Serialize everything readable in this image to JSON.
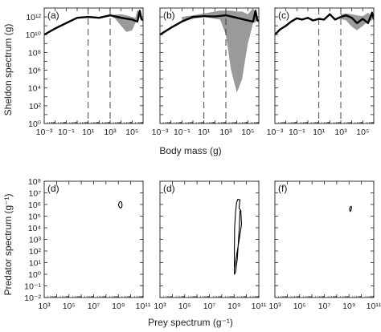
{
  "chart_data": [
    {
      "type": "area",
      "panel_label": "(a)",
      "xscale": "log",
      "yscale": "log",
      "xlim": [
        0.001,
        1000000
      ],
      "ylim": [
        1,
        10000000000000.0
      ],
      "ylabel": "Sheldon spectrum (g)",
      "xlabel": "",
      "vlines": [
        10,
        1000
      ],
      "series": [
        {
          "role": "line",
          "x": [
            0.001,
            0.01,
            0.1,
            1,
            10,
            100,
            1000,
            10000,
            100000,
            300000,
            500000,
            700000,
            1000000
          ],
          "y": [
            10000000000.0,
            50000000000.0,
            200000000000.0,
            800000000000.0,
            1000000000000.0,
            800000000000.0,
            1500000000000.0,
            800000000000.0,
            500000000000.0,
            300000000000.0,
            5000000000000.0,
            600000000000.0,
            400000000000.0
          ]
        },
        {
          "role": "band",
          "x": [
            1000,
            3000,
            10000,
            30000,
            100000,
            200000,
            300000,
            500000,
            700000
          ],
          "upper": [
            1500000000000.0,
            1800000000000.0,
            2000000000000.0,
            1500000000000.0,
            1000000000000.0,
            800000000000.0,
            6000000000000.0,
            3000000000000.0,
            1000000000000.0
          ],
          "lower": [
            1500000000000.0,
            600000000000.0,
            100000000000.0,
            20000000000.0,
            30000000000.0,
            200000000000.0,
            1000000000000.0,
            800000000000.0,
            400000000000.0
          ]
        }
      ]
    },
    {
      "type": "area",
      "panel_label": "(b)",
      "xscale": "log",
      "yscale": "log",
      "xlim": [
        0.001,
        1000000
      ],
      "ylim": [
        1,
        10000000000000.0
      ],
      "xlabel": "",
      "ylabel": "",
      "vlines": [
        10,
        1000
      ],
      "series": [
        {
          "role": "line",
          "x": [
            0.001,
            0.01,
            0.1,
            1,
            10,
            100,
            1000,
            10000,
            100000,
            300000,
            500000,
            700000,
            1000000
          ],
          "y": [
            10000000000.0,
            60000000000.0,
            300000000000.0,
            1000000000000.0,
            1200000000000.0,
            1100000000000.0,
            1500000000000.0,
            800000000000.0,
            400000000000.0,
            300000000000.0,
            5000000000000.0,
            500000000000.0,
            300000000000.0
          ]
        },
        {
          "role": "band",
          "x": [
            0.1,
            1,
            10,
            30,
            100,
            300,
            1000,
            3000,
            10000,
            30000,
            100000,
            300000,
            700000
          ],
          "upper": [
            1000000000000.0,
            1500000000000.0,
            2500000000000.0,
            3000000000000.0,
            4000000000000.0,
            5000000000000.0,
            5000000000000.0,
            5000000000000.0,
            4000000000000.0,
            4000000000000.0,
            2000000000000.0,
            10000000000000.0,
            1000000000000.0
          ],
          "lower": [
            300000000000.0,
            600000000000.0,
            1000000000000.0,
            800000000000.0,
            600000000000.0,
            500000000000.0,
            10000000000.0,
            1000000.0,
            3000.0,
            100000.0,
            1000000000.0,
            200000000000.0,
            300000000000.0
          ]
        }
      ]
    },
    {
      "type": "area",
      "panel_label": "(c)",
      "xscale": "log",
      "yscale": "log",
      "xlim": [
        0.001,
        1000000
      ],
      "ylim": [
        1,
        10000000000000.0
      ],
      "xlabel": "",
      "ylabel": "",
      "vlines": [
        10,
        1000
      ],
      "series": [
        {
          "role": "line",
          "x": [
            0.001,
            0.003,
            0.01,
            0.03,
            0.1,
            0.3,
            1,
            3,
            10,
            30,
            100,
            300,
            1000,
            3000,
            10000,
            30000,
            100000,
            300000,
            700000,
            1000000
          ],
          "y": [
            10000000000.0,
            40000000000.0,
            100000000000.0,
            300000000000.0,
            700000000000.0,
            500000000000.0,
            800000000000.0,
            400000000000.0,
            600000000000.0,
            500000000000.0,
            2000000000000.0,
            500000000000.0,
            1000000000000.0,
            1500000000000.0,
            800000000000.0,
            200000000000.0,
            600000000000.0,
            200000000000.0,
            3000000000000.0,
            500000000000.0
          ]
        },
        {
          "role": "band",
          "x": [
            1000,
            3000,
            10000,
            30000,
            100000,
            300000,
            700000
          ],
          "upper": [
            2000000000000.0,
            2500000000000.0,
            2000000000000.0,
            1500000000000.0,
            1200000000000.0,
            3000000000000.0,
            1000000000000.0
          ],
          "lower": [
            600000000000.0,
            400000000000.0,
            80000000000.0,
            30000000000.0,
            100000000000.0,
            300000000000.0,
            400000000000.0
          ]
        }
      ]
    },
    {
      "type": "line",
      "panel_label": "(d)",
      "xscale": "log",
      "yscale": "log",
      "xlim": [
        1000,
        100000000000.0
      ],
      "ylim": [
        0.01,
        100000000.0
      ],
      "ylabel": "Predator spectrum (g⁻¹)",
      "xlabel": "",
      "series": [
        {
          "x": [
            1200000000.0,
            1500000000.0,
            1800000000.0,
            2000000000.0,
            1900000000.0,
            1500000000.0,
            1200000000.0,
            1000000000.0,
            1200000000.0
          ],
          "y": [
            1600000.0,
            1800000.0,
            1500000.0,
            1000000.0,
            600000.0,
            500000.0,
            600000.0,
            900000.0,
            1600000.0
          ]
        }
      ]
    },
    {
      "type": "line",
      "panel_label": "(d)",
      "xscale": "log",
      "yscale": "log",
      "xlim": [
        1000,
        100000000000.0
      ],
      "ylim": [
        0.01,
        100000000.0
      ],
      "xlabel": "Prey spectrum (g⁻¹)",
      "ylabel": "",
      "series": [
        {
          "x": [
            1000000000.0,
            1500000000.0,
            2500000000.0,
            4000000000.0,
            3500000000.0,
            2500000000.0,
            2800000000.0,
            3000000000.0,
            2000000000.0,
            1600000000.0,
            1300000000.0,
            1100000000.0,
            1050000000.0,
            1050000000.0,
            1300000000.0,
            1800000000.0,
            2200000000.0,
            2600000000.0,
            3000000000.0
          ],
          "y": [
            2,
            30,
            800,
            20000.0,
            300000.0,
            500000.0,
            1500000.0,
            2500000.0,
            2800000.0,
            1500000.0,
            200000.0,
            10000.0,
            100,
            1,
            1.5,
            20,
            500,
            8000.0,
            300000.0
          ]
        }
      ]
    },
    {
      "type": "line",
      "panel_label": "(f)",
      "xscale": "log",
      "yscale": "log",
      "xlim": [
        1000,
        100000000000.0
      ],
      "ylim": [
        0.01,
        100000000.0
      ],
      "xlabel": "",
      "ylabel": "",
      "series": [
        {
          "x": [
            1200000000.0,
            1500000000.0,
            1600000000.0,
            1400000000.0,
            1200000000.0,
            1100000000.0,
            1200000000.0
          ],
          "y": [
            600000.0,
            700000.0,
            500000.0,
            300000.0,
            250000.0,
            400000.0,
            600000.0
          ]
        }
      ]
    }
  ]
}
